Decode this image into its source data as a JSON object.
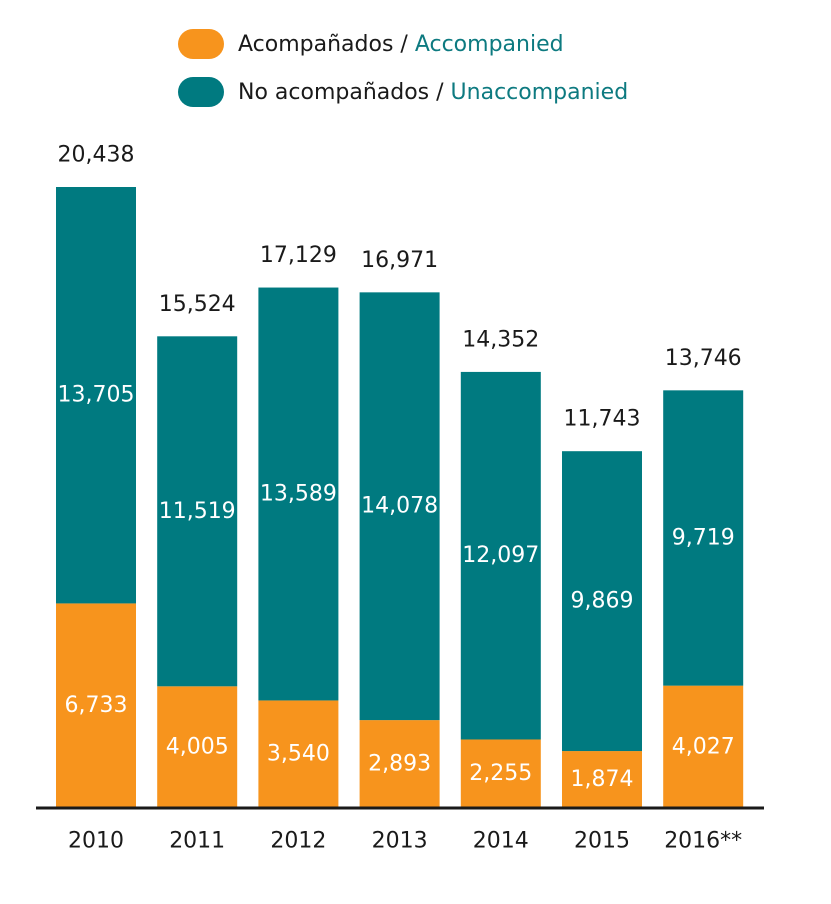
{
  "legend": [
    {
      "es": "Acompañados",
      "sep": " / ",
      "en": "Accompanied",
      "color": "#f7941d"
    },
    {
      "es": "No acompañados",
      "sep": " / ",
      "en": "Unaccompanied",
      "color": "#007a80"
    }
  ],
  "chart_data": {
    "type": "bar",
    "stacked": true,
    "categories": [
      "2010",
      "2011",
      "2012",
      "2013",
      "2014",
      "2015",
      "2016**"
    ],
    "series": [
      {
        "name": "Acompañados / Accompanied",
        "color": "#f7941d",
        "values": [
          6733,
          4005,
          3540,
          2893,
          2255,
          1874,
          4027
        ],
        "labels": [
          "6,733",
          "4,005",
          "3,540",
          "2,893",
          "2,255",
          "1,874",
          "4,027"
        ]
      },
      {
        "name": "No acompañados / Unaccompanied",
        "color": "#007a80",
        "values": [
          13705,
          11519,
          13589,
          14078,
          12097,
          9869,
          9719
        ],
        "labels": [
          "13,705",
          "11,519",
          "13,589",
          "14,078",
          "12,097",
          "9,869",
          "9,719"
        ]
      }
    ],
    "totals": [
      20438,
      15524,
      17129,
      16971,
      14352,
      11743,
      13746
    ],
    "total_labels": [
      "20,438",
      "15,524",
      "17,129",
      "16,971",
      "14,352",
      "11,743",
      "13,746"
    ],
    "ylim": [
      0,
      20438
    ],
    "grid": false,
    "legend_position": "top"
  }
}
